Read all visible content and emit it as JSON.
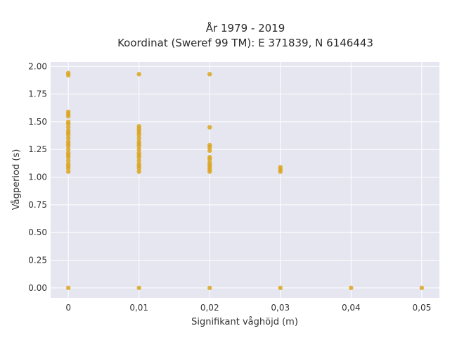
{
  "chart_data": {
    "type": "scatter",
    "title_line1": "År 1979 - 2019",
    "title_line2": "Koordinat (Sweref 99 TM): E 371839, N 6146443",
    "xlabel": "Signifikant våghöjd (m)",
    "ylabel": "Vågperiod (s)",
    "x_ticks": [
      "0",
      "0,01",
      "0,02",
      "0,03",
      "0,04",
      "0,05"
    ],
    "y_ticks": [
      "0.00",
      "0.25",
      "0.50",
      "0.75",
      "1.00",
      "1.25",
      "1.50",
      "1.75",
      "2.00"
    ],
    "xlim": [
      -0.0025,
      0.0525
    ],
    "ylim": [
      -0.09,
      2.04
    ],
    "grid": true,
    "marker_color": "#daa520",
    "plot_background": "#e5e6f0",
    "points": [
      {
        "x": 0,
        "y": 0
      },
      {
        "x": 0,
        "y": 1.05
      },
      {
        "x": 0,
        "y": 1.08
      },
      {
        "x": 0,
        "y": 1.1
      },
      {
        "x": 0,
        "y": 1.12
      },
      {
        "x": 0,
        "y": 1.15
      },
      {
        "x": 0,
        "y": 1.18
      },
      {
        "x": 0,
        "y": 1.2
      },
      {
        "x": 0,
        "y": 1.22
      },
      {
        "x": 0,
        "y": 1.25
      },
      {
        "x": 0,
        "y": 1.28
      },
      {
        "x": 0,
        "y": 1.3
      },
      {
        "x": 0,
        "y": 1.32
      },
      {
        "x": 0,
        "y": 1.35
      },
      {
        "x": 0,
        "y": 1.38
      },
      {
        "x": 0,
        "y": 1.4
      },
      {
        "x": 0,
        "y": 1.42
      },
      {
        "x": 0,
        "y": 1.45
      },
      {
        "x": 0,
        "y": 1.48
      },
      {
        "x": 0,
        "y": 1.5
      },
      {
        "x": 0,
        "y": 1.55
      },
      {
        "x": 0,
        "y": 1.57
      },
      {
        "x": 0,
        "y": 1.59
      },
      {
        "x": 0,
        "y": 1.92
      },
      {
        "x": 0,
        "y": 1.94
      },
      {
        "x": 0.01,
        "y": 0
      },
      {
        "x": 0.01,
        "y": 1.05
      },
      {
        "x": 0.01,
        "y": 1.08
      },
      {
        "x": 0.01,
        "y": 1.1
      },
      {
        "x": 0.01,
        "y": 1.12
      },
      {
        "x": 0.01,
        "y": 1.15
      },
      {
        "x": 0.01,
        "y": 1.18
      },
      {
        "x": 0.01,
        "y": 1.2
      },
      {
        "x": 0.01,
        "y": 1.22
      },
      {
        "x": 0.01,
        "y": 1.25
      },
      {
        "x": 0.01,
        "y": 1.28
      },
      {
        "x": 0.01,
        "y": 1.3
      },
      {
        "x": 0.01,
        "y": 1.32
      },
      {
        "x": 0.01,
        "y": 1.35
      },
      {
        "x": 0.01,
        "y": 1.38
      },
      {
        "x": 0.01,
        "y": 1.4
      },
      {
        "x": 0.01,
        "y": 1.42
      },
      {
        "x": 0.01,
        "y": 1.44
      },
      {
        "x": 0.01,
        "y": 1.46
      },
      {
        "x": 0.01,
        "y": 1.93
      },
      {
        "x": 0.02,
        "y": 0
      },
      {
        "x": 0.02,
        "y": 1.05
      },
      {
        "x": 0.02,
        "y": 1.07
      },
      {
        "x": 0.02,
        "y": 1.09
      },
      {
        "x": 0.02,
        "y": 1.11
      },
      {
        "x": 0.02,
        "y": 1.13
      },
      {
        "x": 0.02,
        "y": 1.16
      },
      {
        "x": 0.02,
        "y": 1.18
      },
      {
        "x": 0.02,
        "y": 1.24
      },
      {
        "x": 0.02,
        "y": 1.27
      },
      {
        "x": 0.02,
        "y": 1.29
      },
      {
        "x": 0.02,
        "y": 1.45
      },
      {
        "x": 0.02,
        "y": 1.93
      },
      {
        "x": 0.03,
        "y": 0
      },
      {
        "x": 0.03,
        "y": 1.05
      },
      {
        "x": 0.03,
        "y": 1.07
      },
      {
        "x": 0.03,
        "y": 1.09
      },
      {
        "x": 0.04,
        "y": 0
      },
      {
        "x": 0.05,
        "y": 0
      }
    ]
  }
}
